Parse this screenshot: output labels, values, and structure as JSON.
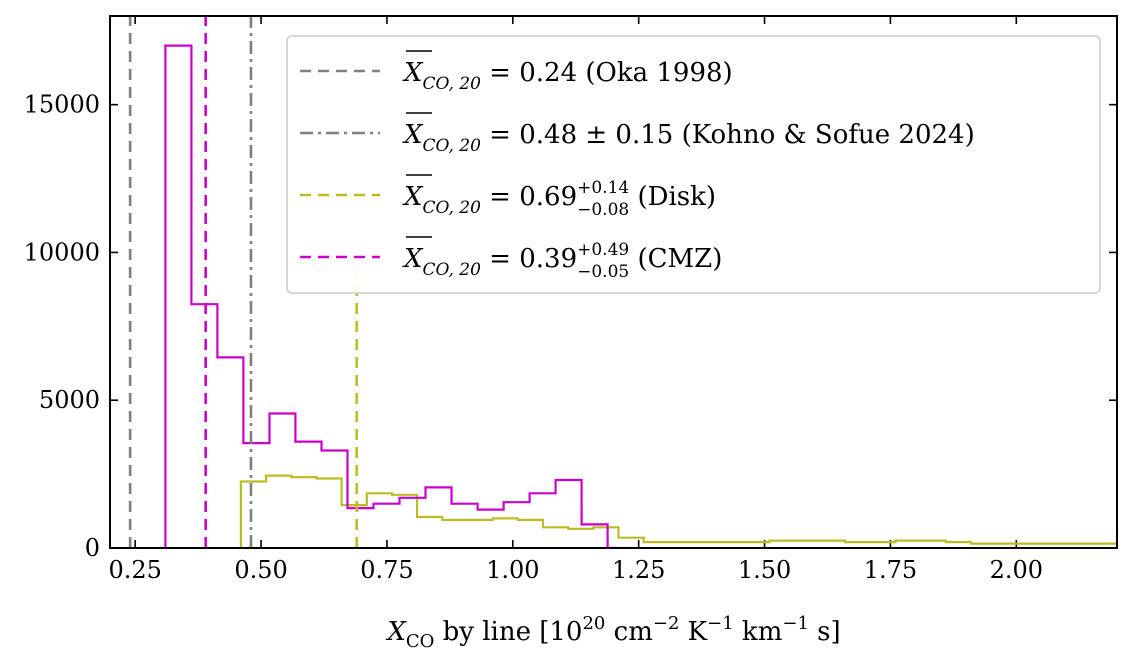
{
  "chart_data": {
    "type": "histogram",
    "xlabel": {
      "symbol": "X",
      "sub": "CO",
      "rest": " by line [10",
      "exp1": "20",
      "cm": " cm",
      "exp2": "−2",
      "K": " K",
      "exp3": "−1",
      "km": " km",
      "exp4": "−1",
      "s": " s]"
    },
    "ylabel": "",
    "xlim": [
      0.2,
      2.2
    ],
    "ylim": [
      0,
      18000
    ],
    "x_ticks": [
      0.25,
      0.5,
      0.75,
      1.0,
      1.25,
      1.5,
      1.75,
      2.0
    ],
    "x_tick_labels": [
      "0.25",
      "0.50",
      "0.75",
      "1.00",
      "1.25",
      "1.50",
      "1.75",
      "2.00"
    ],
    "y_ticks": [
      0,
      5000,
      10000,
      15000
    ],
    "y_tick_labels": [
      "0",
      "5000",
      "10000",
      "15000"
    ],
    "series": [
      {
        "name": "CMZ",
        "color": "#cc00cc",
        "bin_edges": [
          0.31,
          0.3617,
          0.4133,
          0.465,
          0.5167,
          0.5683,
          0.62,
          0.6717,
          0.7233,
          0.775,
          0.8267,
          0.8783,
          0.93,
          0.9817,
          1.0333,
          1.085,
          1.1367,
          1.1883,
          1.24
        ],
        "counts": [
          17000,
          8250,
          6450,
          3550,
          4550,
          3600,
          3300,
          1350,
          1500,
          1700,
          2050,
          1500,
          1300,
          1550,
          1850,
          2300,
          800,
          0
        ]
      },
      {
        "name": "Disk",
        "color": "#bcbd22",
        "bin_edges": [
          0.46,
          0.51,
          0.56,
          0.61,
          0.66,
          0.71,
          0.76,
          0.81,
          0.86,
          0.91,
          0.96,
          1.01,
          1.06,
          1.11,
          1.16,
          1.21,
          1.26,
          1.31,
          1.36,
          1.41,
          1.46,
          1.51,
          1.56,
          1.61,
          1.66,
          1.71,
          1.76,
          1.81,
          1.86,
          1.91,
          1.96,
          2.01,
          2.06,
          2.11,
          2.16,
          2.21
        ],
        "counts": [
          2250,
          2450,
          2400,
          2350,
          1450,
          1850,
          1800,
          1050,
          950,
          950,
          1000,
          950,
          700,
          650,
          700,
          350,
          200,
          200,
          200,
          200,
          200,
          250,
          250,
          250,
          200,
          200,
          250,
          250,
          200,
          150,
          150,
          150,
          150,
          150,
          150
        ]
      }
    ],
    "vlines": [
      {
        "x": 0.24,
        "color": "#808080",
        "style": "dashed",
        "label": "Oka"
      },
      {
        "x": 0.48,
        "color": "#808080",
        "style": "dashdot",
        "label": "Kohno"
      },
      {
        "x": 0.69,
        "color": "#bcbd22",
        "style": "dashed",
        "label": "Disk",
        "ymax": 9500
      },
      {
        "x": 0.39,
        "color": "#cc00cc",
        "style": "dashed",
        "label": "CMZ"
      }
    ],
    "legend": {
      "placement": "top-right",
      "entries": [
        {
          "color": "#808080",
          "style": "dashed",
          "lhs_sym": "X",
          "lhs_sub": "CO, 20",
          "value": " = 0.24 ",
          "sup": "",
          "sub": "",
          "tail": "(Oka 1998)"
        },
        {
          "color": "#808080",
          "style": "dashdot",
          "lhs_sym": "X",
          "lhs_sub": "CO, 20",
          "value": " = 0.48 ± 0.15 ",
          "sup": "",
          "sub": "",
          "tail": "(Kohno & Sofue 2024)"
        },
        {
          "color": "#bcbd22",
          "style": "dashed",
          "lhs_sym": "X",
          "lhs_sub": "CO, 20",
          "value": " = 0.69",
          "sup": "+0.14",
          "sub": "−0.08",
          "tail": " (Disk)"
        },
        {
          "color": "#cc00cc",
          "style": "dashed",
          "lhs_sym": "X",
          "lhs_sub": "CO, 20",
          "value": " = 0.39",
          "sup": "+0.49",
          "sub": "−0.05",
          "tail": " (CMZ)"
        }
      ]
    }
  }
}
